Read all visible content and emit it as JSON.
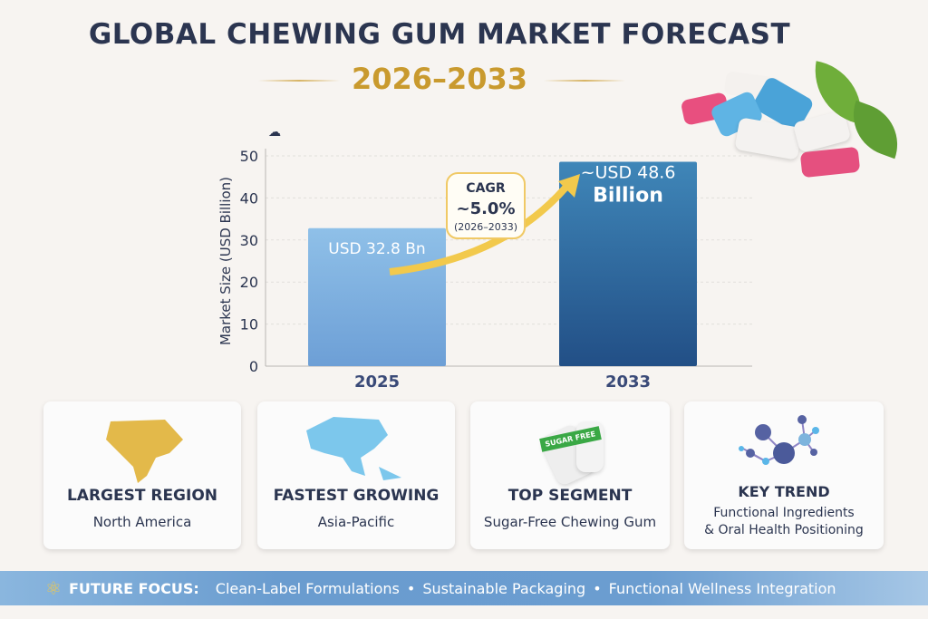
{
  "header": {
    "title": "GLOBAL CHEWING GUM MARKET FORECAST",
    "subtitle": "2026–2033"
  },
  "chart_data": {
    "type": "bar",
    "categories": [
      "2025",
      "2033"
    ],
    "values": [
      32.8,
      48.6
    ],
    "data_labels": [
      "USD 32.8 Bn",
      "~USD 48.6 Billion"
    ],
    "ylabel": "Market Size (USD Billion)",
    "ylim": [
      0,
      50
    ],
    "yticks": [
      "0",
      "10",
      "20",
      "30",
      "40",
      "50"
    ],
    "grid": true,
    "annotation": {
      "line1": "CAGR",
      "line2": "~5.0%",
      "line3": "(2026–2033)"
    },
    "colors": {
      "bar_2025": "#7fb2e2",
      "bar_2033": "#2f6aa0",
      "arrow": "#f2c94c"
    }
  },
  "cards": [
    {
      "heading": "LARGEST REGION",
      "value": "North America",
      "icon": "north-america-map-icon",
      "color": "#e3b94a"
    },
    {
      "heading": "FASTEST GROWING",
      "value": "Asia-Pacific",
      "icon": "asia-pacific-map-icon",
      "color": "#7cc7ec"
    },
    {
      "heading": "TOP SEGMENT",
      "value": "Sugar-Free Chewing Gum",
      "icon": "sugar-free-gum-icon",
      "badge": "SUGAR FREE"
    },
    {
      "heading": "KEY TREND",
      "value": "Functional Ingredients",
      "value2": "& Oral Health Positioning",
      "icon": "molecule-icon"
    }
  ],
  "banner": {
    "label": "FUTURE FOCUS:",
    "items": [
      "Clean-Label Formulations",
      "Sustainable Packaging",
      "Functional Wellness Integration"
    ],
    "icon": "molecule-gold-icon"
  }
}
